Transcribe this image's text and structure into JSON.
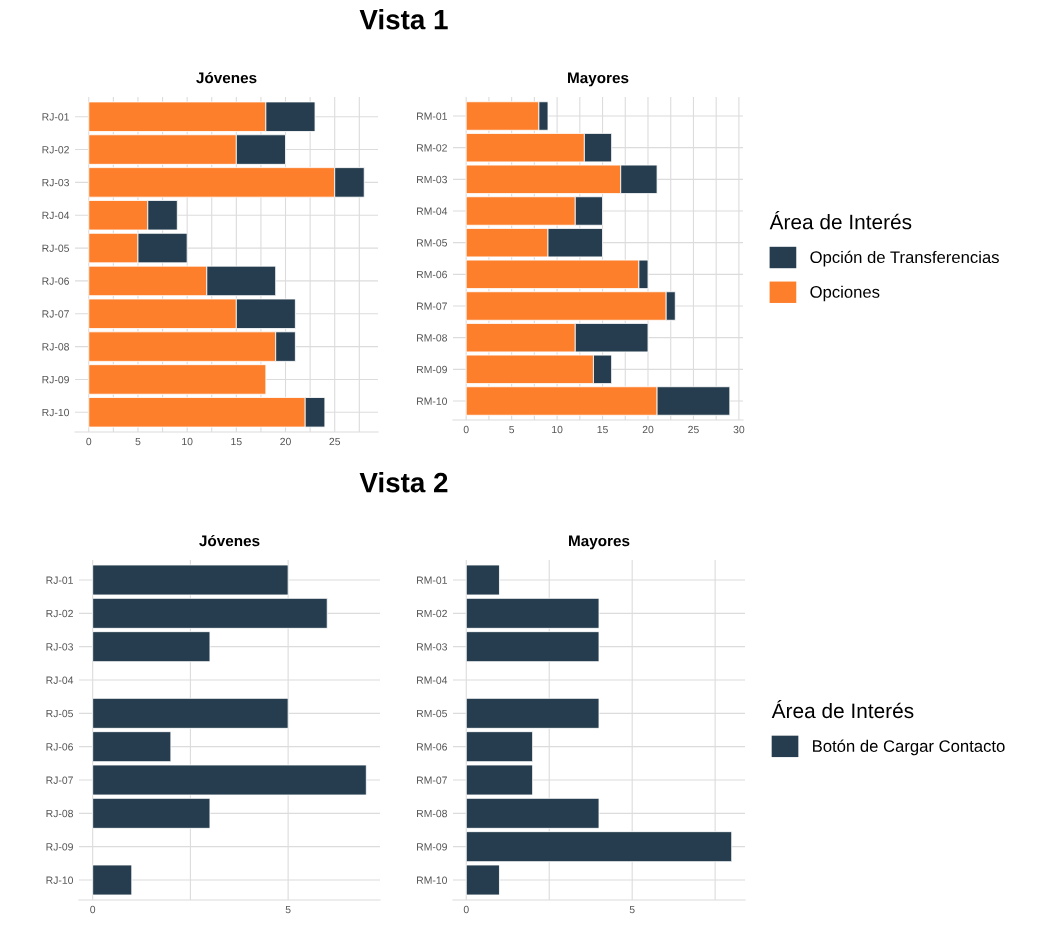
{
  "chart_data": [
    {
      "type": "bar",
      "title": "Jóvenes",
      "annotations": [
        "Vista 1"
      ],
      "orientation": "horizontal",
      "stacked": true,
      "grid": true,
      "categories": [
        "RJ-01",
        "RJ-02",
        "RJ-03",
        "RJ-04",
        "RJ-05",
        "RJ-06",
        "RJ-07",
        "RJ-08",
        "RJ-09",
        "RJ-10"
      ],
      "series": [
        {
          "color": "#fd7f2c",
          "values": [
            18,
            15,
            25,
            6,
            5,
            12,
            15,
            19,
            18,
            22
          ]
        },
        {
          "color": "#253d4e",
          "values": [
            5,
            5,
            3,
            3,
            5,
            7,
            6,
            2,
            0,
            2
          ]
        }
      ],
      "xlim": [
        -1.4,
        29.4
      ],
      "xticks": [
        0,
        {
          "value": 2.5,
          "label": null
        },
        5,
        {
          "value": 7.5,
          "label": null
        },
        10,
        {
          "value": 12.5,
          "label": null
        },
        15,
        {
          "value": 17.5,
          "label": null
        },
        20,
        {
          "value": 22.5,
          "label": null
        },
        25,
        {
          "value": 27.5,
          "label": null
        }
      ]
    },
    {
      "type": "bar",
      "title": "Mayores",
      "orientation": "horizontal",
      "stacked": true,
      "grid": true,
      "legend": "right",
      "legend_title": "Área de Interés",
      "categories": [
        "RM-01",
        "RM-02",
        "RM-03",
        "RM-04",
        "RM-05",
        "RM-06",
        "RM-07",
        "RM-08",
        "RM-09",
        "RM-10"
      ],
      "series": [
        {
          "name": "Opciones",
          "color": "#fd7f2c",
          "values": [
            8,
            13,
            17,
            12,
            9,
            19,
            22,
            12,
            14,
            21
          ]
        },
        {
          "name": "Opción de Transferencias",
          "color": "#253d4e",
          "values": [
            1,
            3,
            4,
            3,
            6,
            1,
            1,
            8,
            2,
            8
          ]
        }
      ],
      "xlim": [
        -1.45,
        30.45
      ],
      "xticks": [
        0,
        {
          "value": 2.5,
          "label": null
        },
        5,
        {
          "value": 7.5,
          "label": null
        },
        10,
        {
          "value": 12.5,
          "label": null
        },
        15,
        {
          "value": 17.5,
          "label": null
        },
        20,
        {
          "value": 22.5,
          "label": null
        },
        25,
        {
          "value": 27.5,
          "label": null
        },
        30
      ]
    },
    {
      "type": "bar",
      "title": "Jóvenes",
      "annotations": [
        "Vista 2"
      ],
      "orientation": "horizontal",
      "grid": true,
      "categories": [
        "RJ-01",
        "RJ-02",
        "RJ-03",
        "RJ-04",
        "RJ-05",
        "RJ-06",
        "RJ-07",
        "RJ-08",
        "RJ-09",
        "RJ-10"
      ],
      "series": [
        {
          "color": "#253d4e",
          "values": [
            5,
            6,
            3,
            0,
            5,
            2,
            7,
            3,
            0,
            1
          ]
        }
      ],
      "xlim": [
        -0.35,
        7.35
      ],
      "xticks": [
        0,
        {
          "value": 2.5,
          "label": null
        },
        5
      ]
    },
    {
      "type": "bar",
      "title": "Mayores",
      "orientation": "horizontal",
      "grid": true,
      "legend": "right",
      "legend_title": "Área de Interés",
      "categories": [
        "RM-01",
        "RM-02",
        "RM-03",
        "RM-04",
        "RM-05",
        "RM-06",
        "RM-07",
        "RM-08",
        "RM-09",
        "RM-10"
      ],
      "series": [
        {
          "name": "Botón de Cargar Contacto",
          "color": "#253d4e",
          "values": [
            1,
            4,
            4,
            0,
            4,
            2,
            2,
            4,
            8,
            1
          ]
        }
      ],
      "xlim": [
        -0.4,
        8.4
      ],
      "xticks": [
        0,
        {
          "value": 2.5,
          "label": null
        },
        5,
        {
          "value": 7.5,
          "label": null
        }
      ]
    }
  ]
}
